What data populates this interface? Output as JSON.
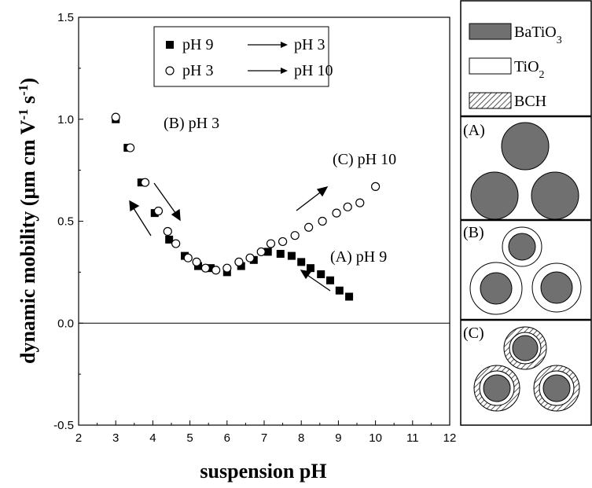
{
  "chart_data": {
    "type": "scatter",
    "xlabel": "suspension pH",
    "ylabel": [
      "dynamic mobility (μm cm V",
      "-1",
      " s",
      "-1",
      ")"
    ],
    "xlim": [
      2,
      12
    ],
    "xticks": [
      2,
      3,
      4,
      5,
      6,
      7,
      8,
      9,
      10,
      11,
      12
    ],
    "ylim": [
      -0.5,
      1.5
    ],
    "yticks": [
      {
        "value": -0.5,
        "label": "-0.5"
      },
      {
        "value": 0,
        "label": "0.0"
      },
      {
        "value": 0.5,
        "label": "0.5"
      },
      {
        "value": 1,
        "label": "1.0"
      },
      {
        "value": 1.5,
        "label": "1.5"
      }
    ],
    "zero_line": true,
    "series": [
      {
        "name": "pH 9",
        "to": "pH 3",
        "marker": "square",
        "color": "#000000",
        "x": [
          3.0,
          3.32,
          3.69,
          4.05,
          4.44,
          4.86,
          5.22,
          5.56,
          6.0,
          6.38,
          6.72,
          7.1,
          7.44,
          7.74,
          8.0,
          8.25,
          8.53,
          8.78,
          9.03,
          9.29
        ],
        "values": [
          1.0,
          0.86,
          0.69,
          0.54,
          0.41,
          0.33,
          0.28,
          0.27,
          0.25,
          0.28,
          0.31,
          0.35,
          0.34,
          0.33,
          0.3,
          0.27,
          0.24,
          0.21,
          0.16,
          0.13
        ]
      },
      {
        "name": "pH 3",
        "to": "pH 10",
        "marker": "circle",
        "color": "#000000",
        "x": [
          3.0,
          3.39,
          3.79,
          4.15,
          4.4,
          4.62,
          4.95,
          5.18,
          5.42,
          5.7,
          6.0,
          6.32,
          6.62,
          6.92,
          7.18,
          7.5,
          7.83,
          8.2,
          8.57,
          8.95,
          9.25,
          9.58,
          10.0
        ],
        "values": [
          1.01,
          0.86,
          0.69,
          0.55,
          0.45,
          0.39,
          0.32,
          0.3,
          0.27,
          0.26,
          0.27,
          0.3,
          0.32,
          0.35,
          0.39,
          0.4,
          0.43,
          0.47,
          0.5,
          0.54,
          0.57,
          0.59,
          0.67
        ]
      }
    ],
    "annotations": [
      "(B) pH 3",
      "(C) pH 10",
      "(A) pH 9"
    ]
  },
  "schematic": {
    "legend": [
      [
        "BaTiO",
        "3"
      ],
      [
        "TiO",
        "2"
      ],
      [
        "BCH"
      ]
    ],
    "panels": [
      "(A)",
      "(B)",
      "(C)"
    ]
  }
}
